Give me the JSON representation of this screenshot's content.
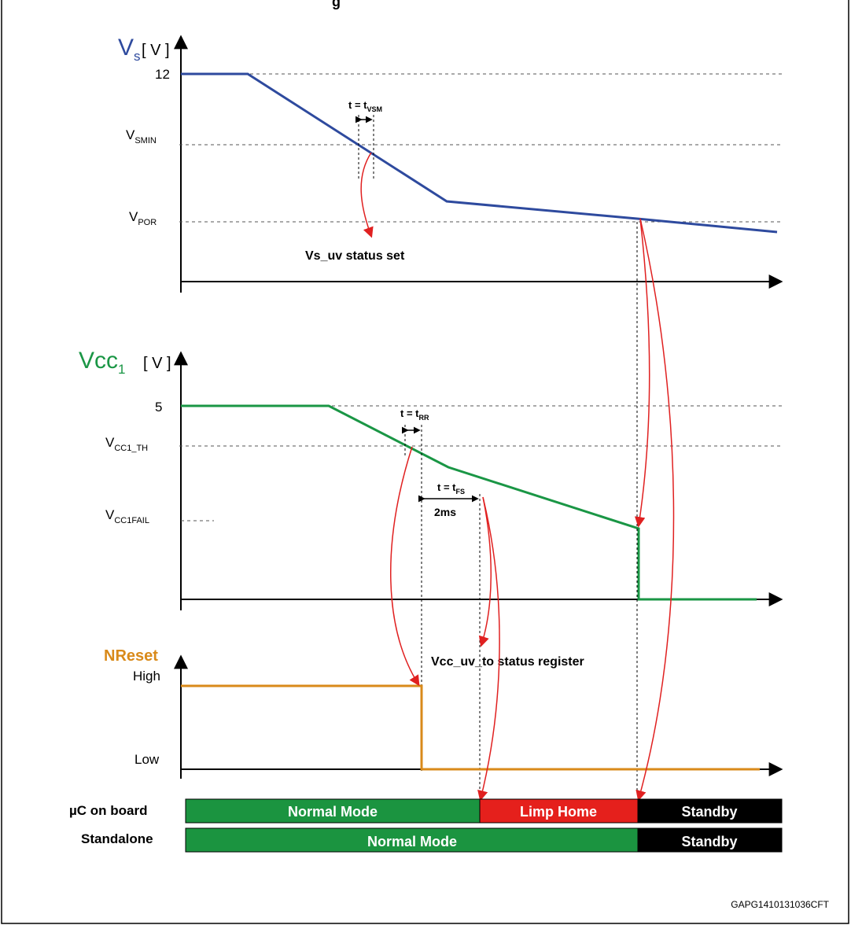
{
  "header": {
    "title_fragment": "g"
  },
  "vs": {
    "axis_main": "V",
    "axis_sub": "s",
    "axis_unit": "[ V ]",
    "label_12": "12",
    "vsmin_main": "V",
    "vsmin_sub": "SMIN",
    "vpor_main": "V",
    "vpor_sub": "POR",
    "tvsm_main": "t = t",
    "tvsm_sub": "VSM",
    "status": "Vs_uv status set"
  },
  "vcc": {
    "axis_main": "Vcc",
    "axis_sub": "1",
    "axis_unit": "[ V ]",
    "label_5": "5",
    "th_main": "V",
    "th_sub": "CC1_TH",
    "fail_main": "V",
    "fail_sub": "CC1FAIL",
    "trr_main": "t = t",
    "trr_sub": "RR",
    "tfs_main": "t = t",
    "tfs_sub": "FS",
    "delay": "2ms"
  },
  "nreset": {
    "axis": "NReset",
    "high": "High",
    "low": "Low",
    "status": "Vcc_uv_to status register"
  },
  "modes": {
    "uc_label": "µC on board",
    "standalone_label": "Standalone",
    "uc_normal": "Normal Mode",
    "uc_limp": "Limp Home",
    "uc_standby": "Standby",
    "sa_normal": "Normal Mode",
    "sa_standby": "Standby"
  },
  "footer": {
    "code": "GAPG1410131036CFT"
  },
  "colors": {
    "vs": "#2e4a9e",
    "vcc": "#1a9645",
    "nreset": "#d98a1a",
    "arrow": "#e02020",
    "normal": "#1b9440",
    "limp": "#e5201c",
    "standby": "#000000"
  }
}
